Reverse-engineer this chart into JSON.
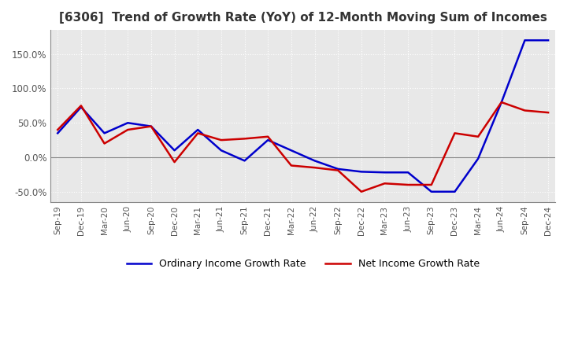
{
  "title": "[6306]  Trend of Growth Rate (YoY) of 12-Month Moving Sum of Incomes",
  "title_fontsize": 11,
  "ylim": [
    -0.65,
    1.85
  ],
  "yticks": [
    -0.5,
    0.0,
    0.5,
    1.0,
    1.5
  ],
  "ytick_labels": [
    "-50.0%",
    "0.0%",
    "50.0%",
    "100.0%",
    "150.0%"
  ],
  "background_color": "#ffffff",
  "plot_bg_color": "#e8e8e8",
  "grid_color": "#ffffff",
  "ordinary_color": "#0000cc",
  "net_color": "#cc0000",
  "legend_labels": [
    "Ordinary Income Growth Rate",
    "Net Income Growth Rate"
  ],
  "x_labels": [
    "Sep-19",
    "Dec-19",
    "Mar-20",
    "Jun-20",
    "Sep-20",
    "Dec-20",
    "Mar-21",
    "Jun-21",
    "Sep-21",
    "Dec-21",
    "Mar-22",
    "Jun-22",
    "Sep-22",
    "Dec-22",
    "Mar-23",
    "Jun-23",
    "Sep-23",
    "Dec-23",
    "Mar-24",
    "Jun-24",
    "Sep-24",
    "Dec-24"
  ],
  "ordinary_income": [
    0.35,
    0.73,
    0.35,
    0.5,
    0.45,
    0.1,
    0.4,
    0.1,
    -0.05,
    0.25,
    0.1,
    -0.05,
    -0.17,
    -0.21,
    -0.22,
    -0.22,
    -0.5,
    -0.5,
    -0.02,
    0.8,
    1.7,
    1.7
  ],
  "net_income": [
    0.4,
    0.75,
    0.2,
    0.4,
    0.45,
    -0.07,
    0.35,
    0.25,
    0.27,
    0.3,
    -0.12,
    -0.15,
    -0.19,
    -0.5,
    -0.38,
    -0.4,
    -0.4,
    0.35,
    0.3,
    0.8,
    0.68,
    0.65
  ]
}
